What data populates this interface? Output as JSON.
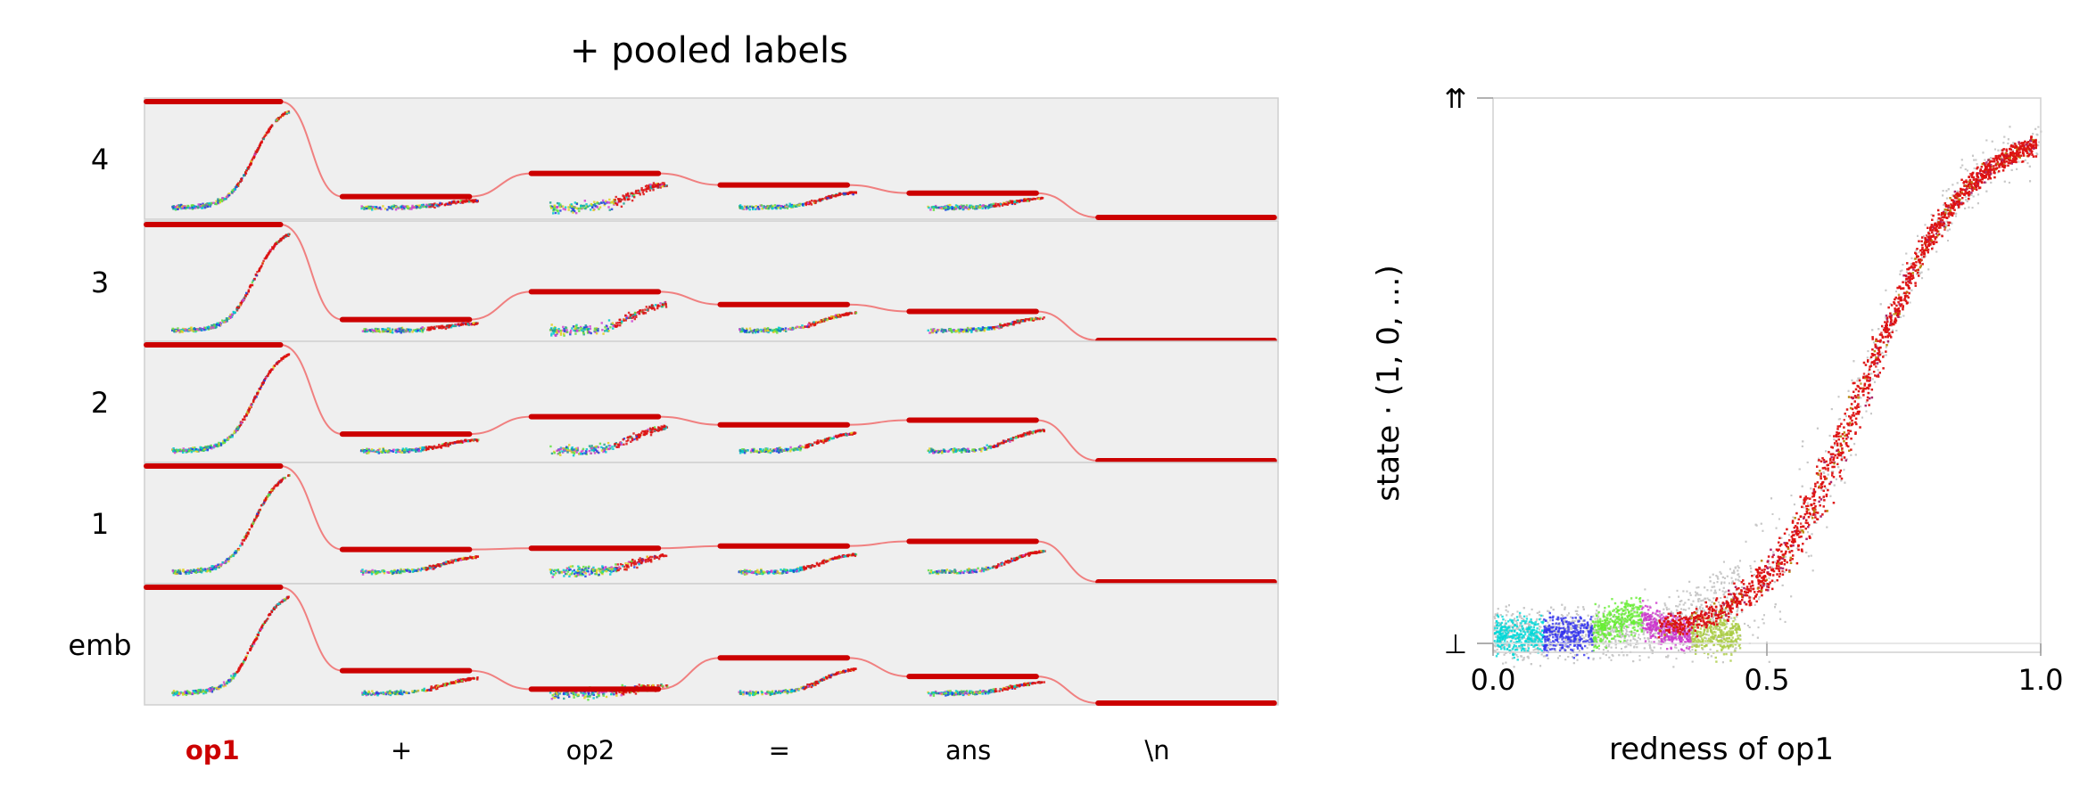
{
  "chart_data": [
    {
      "type": "line",
      "title": "+ pooled labels",
      "row_labels": [
        "4",
        "3",
        "2",
        "1",
        "emb"
      ],
      "token_labels": [
        "op1",
        "+",
        "op2",
        "=",
        "ans",
        "\\n"
      ],
      "highlight_token": "op1",
      "highlight_color": "#cc0000",
      "line_color": "#cc0000",
      "curve_color": "#f08080",
      "fill_color": "#efefef",
      "pooled_levels": [
        [
          1.0,
          0.18,
          0.38,
          0.28,
          0.21,
          0.0
        ],
        [
          1.0,
          0.18,
          0.42,
          0.31,
          0.25,
          0.0
        ],
        [
          1.0,
          0.23,
          0.38,
          0.31,
          0.35,
          0.0
        ],
        [
          1.0,
          0.28,
          0.29,
          0.31,
          0.35,
          0.0
        ],
        [
          1.0,
          0.28,
          0.12,
          0.39,
          0.23,
          0.0
        ]
      ]
    },
    {
      "type": "scatter",
      "xlabel": "redness of op1",
      "ylabel": "state · (1, 0, …)",
      "x_ticks": [
        "0.0",
        "0.5",
        "1.0"
      ],
      "y_ticks": [
        "⊥",
        "⇈"
      ],
      "xlim": [
        0.0,
        1.0
      ],
      "background_color": "#c8c8c8",
      "main_color": "#dd1111",
      "cluster_colors": [
        "#00d8d8",
        "#3333ee",
        "#66ee33",
        "#cc33cc",
        "#aacc44"
      ]
    }
  ]
}
